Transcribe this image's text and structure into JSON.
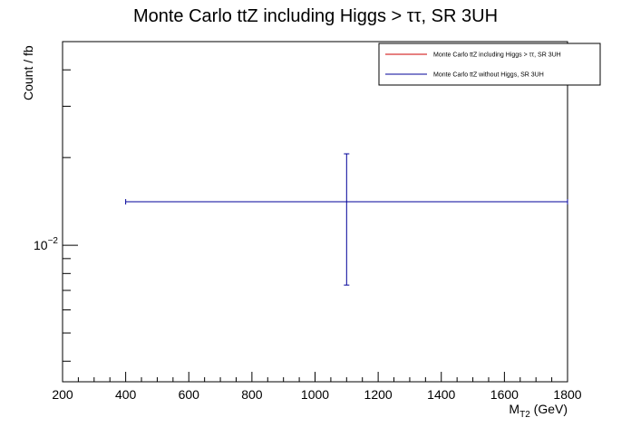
{
  "chart_data": {
    "type": "scatter",
    "title": "Monte Carlo ttZ including Higgs > ττ, SR 3UH",
    "xlabel_main": "M",
    "xlabel_sub": "T2",
    "xlabel_unit": " (GeV)",
    "ylabel": "Count / fb",
    "xlim": [
      200,
      1800
    ],
    "x_ticks": [
      200,
      400,
      600,
      800,
      1000,
      1200,
      1400,
      1600,
      1800
    ],
    "y_scale": "log",
    "ylim": [
      0.0034,
      0.05
    ],
    "y_tick_label_base": "10",
    "y_tick_label_exp": "−2",
    "grid": false,
    "legend_position": "top-right",
    "series": [
      {
        "name": "Monte Carlo ttZ including Higgs > ττ, SR 3UH",
        "color": "#cc0000",
        "points": []
      },
      {
        "name": "Monte Carlo ttZ without Higgs, SR 3UH",
        "color": "#000099",
        "points": [
          {
            "x": 1100,
            "x_low": 400,
            "x_high": 1800,
            "y": 0.0141,
            "y_low": 0.0073,
            "y_high": 0.0206
          }
        ]
      }
    ]
  }
}
